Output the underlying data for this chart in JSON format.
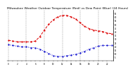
{
  "title": "Milwaukee Weather Outdoor Temperature (Red) vs Dew Point (Blue) (24 Hours)",
  "title_fontsize": 3.2,
  "background_color": "#ffffff",
  "hours": [
    0,
    1,
    2,
    3,
    4,
    5,
    6,
    7,
    8,
    9,
    10,
    11,
    12,
    13,
    14,
    15,
    16,
    17,
    18,
    19,
    20,
    21,
    22,
    23
  ],
  "temp": [
    28,
    27,
    26,
    26,
    26,
    26,
    27,
    33,
    42,
    50,
    56,
    60,
    62,
    62,
    60,
    57,
    52,
    47,
    44,
    42,
    41,
    40,
    38,
    37
  ],
  "dew": [
    22,
    21,
    20,
    19,
    19,
    18,
    18,
    16,
    13,
    10,
    7,
    6,
    6,
    7,
    8,
    9,
    11,
    13,
    16,
    18,
    20,
    21,
    21,
    21
  ],
  "temp_color": "#dd0000",
  "dew_color": "#0000cc",
  "grid_color": "#888888",
  "ylim_min": 0,
  "ylim_max": 70,
  "ylabel_right_vals": [
    65,
    60,
    55,
    50,
    45,
    40,
    35,
    30,
    25,
    20,
    15,
    10,
    5
  ],
  "ylabel_right": [
    "65",
    "60",
    "55",
    "50",
    "45",
    "40",
    "35",
    "30",
    "25",
    "20",
    "15",
    "10",
    "5"
  ],
  "grid_hours": [
    0,
    4,
    8,
    12,
    16,
    20
  ]
}
